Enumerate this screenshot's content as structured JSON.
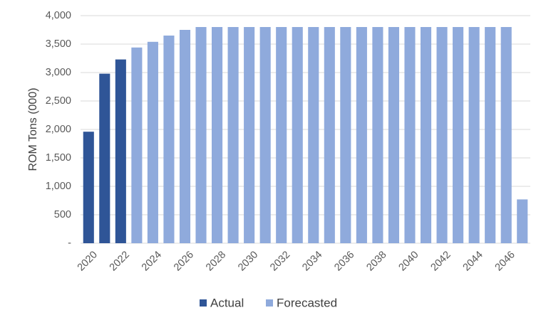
{
  "chart_data": {
    "type": "bar",
    "ylabel": "ROM Tons (000)",
    "xlabel": "",
    "ylim": [
      0,
      4000
    ],
    "y_ticks": [
      0,
      500,
      1000,
      1500,
      2000,
      2500,
      3000,
      3500,
      4000
    ],
    "y_tick_labels": [
      "-",
      "500",
      "1,000",
      "1,500",
      "2,000",
      "2,500",
      "3,000",
      "3,500",
      "4,000"
    ],
    "x_tick_labels": [
      "2020",
      "2022",
      "2024",
      "2026",
      "2028",
      "2030",
      "2032",
      "2034",
      "2036",
      "2038",
      "2040",
      "2042",
      "2044",
      "2046"
    ],
    "grid": "horizontal",
    "legend_position": "bottom",
    "categories": [
      "2020",
      "2021",
      "2022",
      "2023",
      "2024",
      "2025",
      "2026",
      "2027",
      "2028",
      "2029",
      "2030",
      "2031",
      "2032",
      "2033",
      "2034",
      "2035",
      "2036",
      "2037",
      "2038",
      "2039",
      "2040",
      "2041",
      "2042",
      "2043",
      "2044",
      "2045",
      "2046",
      "2047"
    ],
    "series": [
      {
        "name": "Actual",
        "color": "#2f5597",
        "values": [
          1960,
          2980,
          3230,
          null,
          null,
          null,
          null,
          null,
          null,
          null,
          null,
          null,
          null,
          null,
          null,
          null,
          null,
          null,
          null,
          null,
          null,
          null,
          null,
          null,
          null,
          null,
          null,
          null
        ]
      },
      {
        "name": "Forecasted",
        "color": "#8faadc",
        "values": [
          null,
          null,
          null,
          3440,
          3540,
          3650,
          3750,
          3800,
          3800,
          3800,
          3800,
          3800,
          3800,
          3800,
          3800,
          3800,
          3800,
          3800,
          3800,
          3800,
          3800,
          3800,
          3800,
          3800,
          3800,
          3800,
          3800,
          770
        ]
      }
    ]
  }
}
